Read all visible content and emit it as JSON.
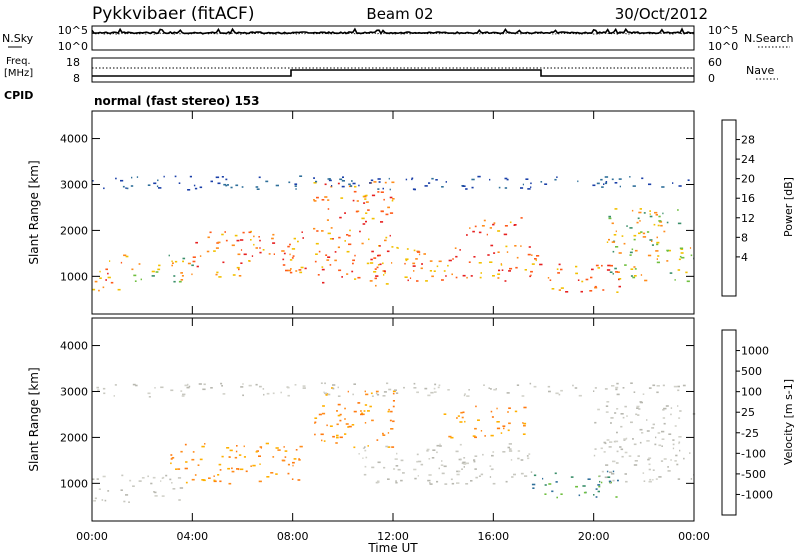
{
  "header": {
    "station": "Pykkvibaer (fitACF)",
    "beam": "Beam 02",
    "date": "30/Oct/2012"
  },
  "panels": {
    "nsky": {
      "label": "N.Sky",
      "tick_top": "10^5",
      "tick_bottom": "10^0"
    },
    "nsearch": {
      "label": "N.Search",
      "tick_top": "10^5",
      "tick_bottom": "10^0"
    },
    "freq": {
      "label_line1": "Freq.",
      "label_line2": "[MHz]",
      "tick_top": "18",
      "tick_bottom": "8"
    },
    "nave": {
      "label": "Nave",
      "tick_top": "60",
      "tick_bottom": "0"
    },
    "cpid": {
      "label": "CPID",
      "mode": "normal (fast stereo) 153"
    }
  },
  "chart_data": [
    {
      "type": "heatmap",
      "name": "power-panel",
      "xlabel": "",
      "ylabel": "Slant Range [km]",
      "x_ticks": [
        "00:00",
        "04:00",
        "08:00",
        "12:00",
        "16:00",
        "20:00",
        "00:00"
      ],
      "x_tick_hours": [
        0,
        4,
        8,
        12,
        16,
        20,
        24
      ],
      "xlim_hours": [
        0,
        24
      ],
      "y_ticks": [
        1000,
        2000,
        3000,
        4000
      ],
      "ylim": [
        180,
        4600
      ],
      "colorbar": {
        "label": "Power [dB]",
        "ticks": [
          "28",
          "24",
          "20",
          "16",
          "12",
          "8",
          "4"
        ],
        "colors": [
          "#0000ff",
          "#1a3fa8",
          "#2f6f9a",
          "#3a8f6a",
          "#6fbf3f",
          "#f2c000",
          "#ff8c1a",
          "#ff5a1a",
          "#e62020"
        ]
      },
      "bands": [
        {
          "t0": 0.0,
          "t1": 1.2,
          "r_low": 700,
          "r_high": 1400,
          "level": "high"
        },
        {
          "t0": 1.2,
          "t1": 4.0,
          "r_low": 900,
          "r_high": 1500,
          "level": "medium"
        },
        {
          "t0": 4.0,
          "t1": 8.5,
          "r_low": 1000,
          "r_high": 2000,
          "level": "high"
        },
        {
          "t0": 8.8,
          "t1": 12.0,
          "r_low": 800,
          "r_high": 3100,
          "level": "high"
        },
        {
          "t0": 12.0,
          "t1": 18.0,
          "r_low": 900,
          "r_high": 1700,
          "level": "high"
        },
        {
          "t0": 14.5,
          "t1": 17.2,
          "r_low": 1900,
          "r_high": 2300,
          "level": "high"
        },
        {
          "t0": 18.0,
          "t1": 21.0,
          "r_low": 650,
          "r_high": 1300,
          "level": "high"
        },
        {
          "t0": 20.5,
          "t1": 24.0,
          "r_low": 900,
          "r_high": 2500,
          "level": "medium"
        },
        {
          "t0": 0.0,
          "t1": 24.0,
          "r_low": 2900,
          "r_high": 3200,
          "level": "low"
        }
      ]
    },
    {
      "type": "heatmap",
      "name": "velocity-panel",
      "xlabel": "Time UT",
      "ylabel": "Slant Range [km]",
      "x_ticks": [
        "00:00",
        "04:00",
        "08:00",
        "12:00",
        "16:00",
        "20:00",
        "00:00"
      ],
      "x_tick_hours": [
        0,
        4,
        8,
        12,
        16,
        20,
        24
      ],
      "xlim_hours": [
        0,
        24
      ],
      "y_ticks": [
        1000,
        2000,
        3000,
        4000
      ],
      "ylim": [
        180,
        4600
      ],
      "colorbar": {
        "label": "Velocity [m s-1]",
        "ticks": [
          "1000",
          "500",
          "100",
          "25",
          "-25",
          "-100",
          "-500",
          "-1000"
        ],
        "colors": [
          "#1a3fa8",
          "#2f6f9a",
          "#3a8f6a",
          "#6fbf3f",
          "#c8c8c0",
          "#ffb000",
          "#ff8c1a",
          "#ff5a1a",
          "#e62020"
        ]
      },
      "bands": [
        {
          "t0": 0.0,
          "t1": 3.5,
          "r_low": 600,
          "r_high": 1200,
          "level": "gray"
        },
        {
          "t0": 3.0,
          "t1": 8.3,
          "r_low": 1000,
          "r_high": 1900,
          "level": "orange"
        },
        {
          "t0": 8.8,
          "t1": 12.0,
          "r_low": 1800,
          "r_high": 3100,
          "level": "orange"
        },
        {
          "t0": 10.5,
          "t1": 17.5,
          "r_low": 1000,
          "r_high": 1900,
          "level": "gray"
        },
        {
          "t0": 14.0,
          "t1": 17.2,
          "r_low": 2000,
          "r_high": 2700,
          "level": "orange"
        },
        {
          "t0": 17.5,
          "t1": 21.0,
          "r_low": 700,
          "r_high": 1300,
          "level": "green"
        },
        {
          "t0": 20.0,
          "t1": 24.0,
          "r_low": 1000,
          "r_high": 2800,
          "level": "gray"
        },
        {
          "t0": 0.0,
          "t1": 24.0,
          "r_low": 2900,
          "r_high": 3200,
          "level": "gray"
        }
      ]
    }
  ]
}
